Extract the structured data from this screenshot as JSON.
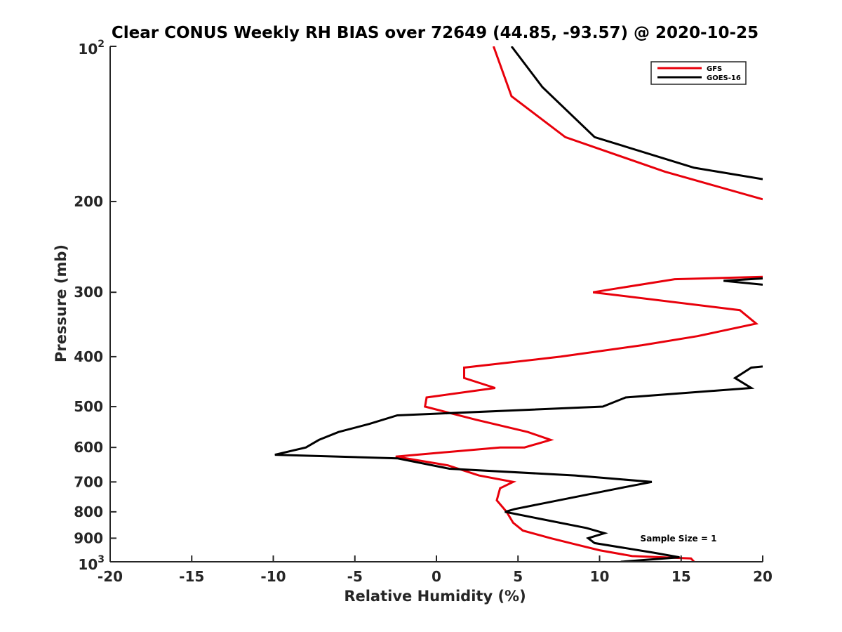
{
  "chart_data": {
    "type": "line",
    "title": "Clear CONUS Weekly RH BIAS over 72649 (44.85, -93.57) @ 2020-10-25",
    "xlabel": "Relative Humidity (%)",
    "ylabel": "Pressure (mb)",
    "xlim": [
      -20,
      20
    ],
    "ylim": [
      100,
      1000
    ],
    "y_scale": "log",
    "y_reversed": true,
    "x_ticks": [
      -20,
      -15,
      -10,
      -5,
      0,
      5,
      10,
      15,
      20
    ],
    "x_tick_labels": [
      "-20",
      "-15",
      "-10",
      "-5",
      "0",
      "5",
      "10",
      "15",
      "20"
    ],
    "y_ticks": [
      {
        "value": 100,
        "base": "10",
        "exp": "2"
      },
      {
        "value": 200,
        "label": "200"
      },
      {
        "value": 300,
        "label": "300"
      },
      {
        "value": 400,
        "label": "400"
      },
      {
        "value": 500,
        "label": "500"
      },
      {
        "value": 600,
        "label": "600"
      },
      {
        "value": 700,
        "label": "700"
      },
      {
        "value": 800,
        "label": "800"
      },
      {
        "value": 900,
        "label": "900"
      },
      {
        "value": 1000,
        "base": "10",
        "exp": "3"
      }
    ],
    "grid": false,
    "legend_position": "top-right",
    "annotation": "Sample Size = 1",
    "series": [
      {
        "name": "GFS",
        "color": "#e8000b",
        "segments": [
          [
            [
              3.5,
              100
            ],
            [
              4.6,
              125
            ],
            [
              7.9,
              150
            ],
            [
              14.0,
              175
            ],
            [
              20.0,
              198
            ]
          ],
          [
            [
              20.0,
              280
            ],
            [
              14.6,
              283
            ],
            [
              9.6,
              300
            ],
            [
              18.6,
              325
            ],
            [
              19.6,
              345
            ],
            [
              16.0,
              365
            ],
            [
              12.6,
              380
            ],
            [
              7.6,
              400
            ],
            [
              1.7,
              420
            ],
            [
              1.7,
              440
            ],
            [
              3.6,
              460
            ],
            [
              -0.6,
              480
            ],
            [
              -0.7,
              500
            ],
            [
              2.4,
              530
            ],
            [
              5.6,
              560
            ],
            [
              7.0,
              580
            ],
            [
              5.4,
              600
            ],
            [
              3.9,
              600
            ],
            [
              -2.5,
              625
            ],
            [
              0.7,
              650
            ],
            [
              2.6,
              680
            ],
            [
              4.7,
              700
            ],
            [
              3.9,
              720
            ],
            [
              3.7,
              760
            ],
            [
              4.3,
              800
            ],
            [
              4.7,
              840
            ],
            [
              5.3,
              870
            ],
            [
              7.0,
              900
            ],
            [
              8.5,
              925
            ],
            [
              10.0,
              950
            ],
            [
              12.0,
              975
            ],
            [
              15.6,
              985
            ],
            [
              15.8,
              1000
            ]
          ]
        ]
      },
      {
        "name": "GOES-16",
        "color": "#000000",
        "segments": [
          [
            [
              4.6,
              100
            ],
            [
              6.5,
              120
            ],
            [
              9.7,
              150
            ],
            [
              15.8,
              172
            ],
            [
              20.0,
              181
            ]
          ],
          [
            [
              20.0,
              282
            ],
            [
              17.6,
              285
            ],
            [
              20.0,
              290
            ]
          ],
          [
            [
              20.0,
              418
            ],
            [
              19.3,
              420
            ],
            [
              18.3,
              440
            ],
            [
              19.3,
              460
            ],
            [
              11.6,
              480
            ],
            [
              10.2,
              500
            ],
            [
              -2.4,
              520
            ],
            [
              -4.1,
              540
            ],
            [
              -6.0,
              560
            ],
            [
              -7.2,
              580
            ],
            [
              -8.0,
              600
            ],
            [
              -9.9,
              620
            ],
            [
              -2.4,
              630
            ],
            [
              0.8,
              660
            ],
            [
              8.5,
              680
            ],
            [
              13.2,
              700
            ],
            [
              11.2,
              720
            ],
            [
              4.8,
              790
            ],
            [
              4.2,
              800
            ],
            [
              9.2,
              860
            ],
            [
              10.3,
              880
            ],
            [
              9.3,
              900
            ],
            [
              9.7,
              920
            ],
            [
              13.3,
              960
            ],
            [
              14.9,
              980
            ],
            [
              11.3,
              1000
            ]
          ]
        ]
      }
    ]
  }
}
